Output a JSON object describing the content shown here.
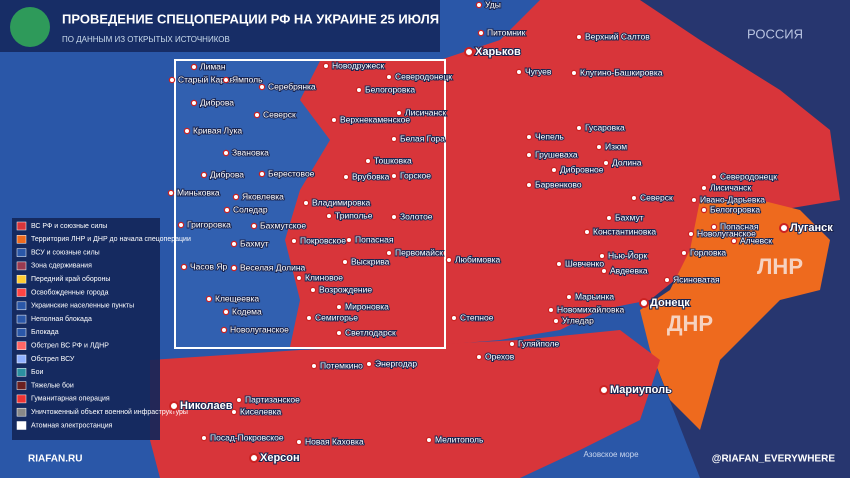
{
  "header": {
    "title": "ПРОВЕДЕНИЕ СПЕЦОПЕРАЦИИ РФ НА УКРАИНЕ 25 ИЮЛЯ",
    "subtitle": "ПО ДАННЫМ ИЗ ОТКРЫТЫХ ИСТОЧНИКОВ"
  },
  "watermark": "РОССИЯ",
  "regions": {
    "lnr": "ЛНР",
    "dnr": "ДНР"
  },
  "legend": {
    "items": [
      "ВС РФ и союзные силы",
      "Территория ЛНР и ДНР до начала спецоперации",
      "ВСУ и союзные силы",
      "Зона сдерживания",
      "Передний край обороны",
      "Освобожденные города",
      "Украинские населенные пункты",
      "Неполная блокада",
      "Блокада",
      "Обстрел ВС РФ и ЛДНР",
      "Обстрел ВСУ",
      "Бои",
      "Тяжелые бои",
      "Гуманитарная операция",
      "Уничтоженный объект военной инфраструктуры",
      "Атомная электростанция"
    ]
  },
  "map": {
    "labels": [
      "Уды",
      "Питомник",
      "Верхний Салтов",
      "Харьков",
      "Чугуев",
      "Клугино-Башкировка",
      "Гусаровка",
      "Чепель",
      "Изюм",
      "Грушеваха",
      "Долина",
      "Дибровное",
      "Барвенково",
      "Северодонецк",
      "Лисичанск",
      "Ивано-Дарьевка",
      "Северск",
      "Белогоровка",
      "Бахмут",
      "Попасная",
      "Новолуганское",
      "Константиновка",
      "Луганск",
      "Алчевск",
      "Горловка",
      "Нью-Йорк",
      "Авдеевка",
      "Шевченко",
      "Ясиноватая",
      "Марьинка",
      "Донецк",
      "Новомихайловка",
      "Угледар",
      "Мариуполь",
      "Любимовка",
      "Степное",
      "Орехов",
      "Гуляйполе",
      "Энергодар",
      "Потемкино",
      "Партизанское",
      "Киселевка",
      "Николаев",
      "Посад-Покровское",
      "Новая Каховка",
      "Мелитополь",
      "Херсон"
    ],
    "sea": "Азовское море",
    "inset_labels": [
      "Лиман",
      "Старый Караван",
      "Ямполь",
      "Серебрянка",
      "Новодружеск",
      "Северодонецк",
      "Диброва",
      "Белогоровка",
      "Лисичанск",
      "Северск",
      "Кривая Лука",
      "Верхнекаменское",
      "Белая Гора",
      "Звановка",
      "Берестовое",
      "Тошковка",
      "Врубовка",
      "Горское",
      "Диброва",
      "Миньковка",
      "Яковлевка",
      "Соледар",
      "Владимировка",
      "Триполье",
      "Золотое",
      "Григоровка",
      "Бахмутское",
      "Покровское",
      "Попасная",
      "Первомайск",
      "Бахмут",
      "Выскрива",
      "Часов Яр",
      "Веселая Долина",
      "Клиновое",
      "Клещеевка",
      "Возрождение",
      "Мироновка",
      "Кодема",
      "Семигорье",
      "Новолуганское",
      "Светлодарск"
    ]
  },
  "footer": {
    "site": "RIAFAN.RU",
    "social": "@RIAFAN_EVERYWHERE"
  }
}
